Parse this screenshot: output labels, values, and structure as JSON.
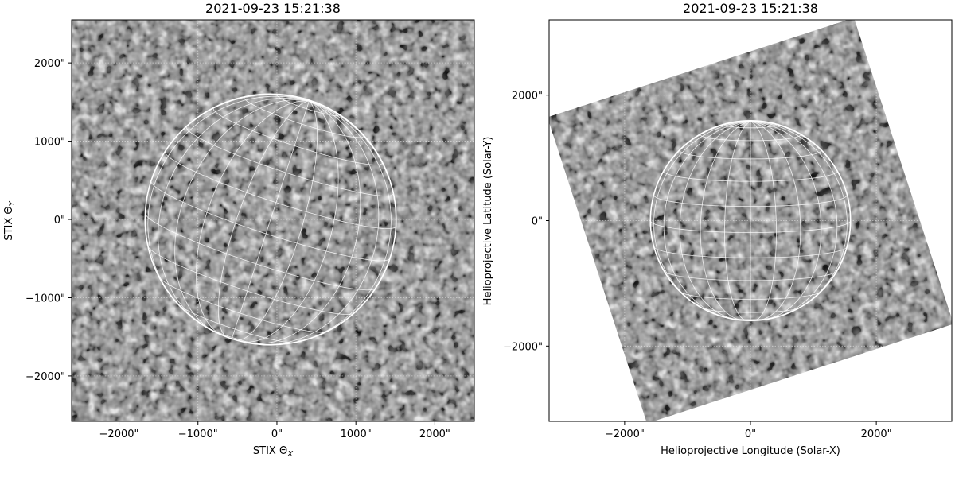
{
  "chart_data": [
    {
      "type": "heatmap",
      "title": "2021-09-23 15:21:38",
      "xlabel": "STIX Θ",
      "xlabel_sub": "X",
      "ylabel": "STIX Θ",
      "ylabel_sub": "Y",
      "xlim": [
        -2600,
        2500
      ],
      "ylim": [
        -2580,
        2550
      ],
      "xticks": [
        -2000,
        -1000,
        0,
        1000,
        2000
      ],
      "yticks": [
        -2000,
        -1000,
        0,
        1000,
        2000
      ],
      "xtick_labels": [
        "−2000\"",
        "−1000\"",
        "0\"",
        "1000\"",
        "2000\""
      ],
      "ytick_labels": [
        "−2000\"",
        "−1000\"",
        "0\"",
        "1000\"",
        "2000\""
      ],
      "grid": true,
      "colormap": "gray",
      "solar_limb": {
        "center": [
          -80,
          0
        ],
        "radius": 1590
      },
      "heliographic_grid": true
    },
    {
      "type": "heatmap",
      "title": "2021-09-23 15:21:38",
      "xlabel": "Helioprojective Longitude (Solar-X)",
      "ylabel": "Helioprojective Latitude (Solar-Y)",
      "xlim": [
        -3200,
        3200
      ],
      "ylim": [
        -3200,
        3200
      ],
      "xticks": [
        -2000,
        0,
        2000
      ],
      "yticks": [
        -2000,
        0,
        2000
      ],
      "xtick_labels": [
        "−2000\"",
        "0\"",
        "2000\""
      ],
      "ytick_labels": [
        "−2000\"",
        "0\"",
        "2000\""
      ],
      "grid": true,
      "colormap": "gray",
      "image_rotation_deg": 18,
      "solar_limb": {
        "center": [
          0,
          0
        ],
        "radius": 1590
      },
      "heliographic_grid": true
    }
  ]
}
